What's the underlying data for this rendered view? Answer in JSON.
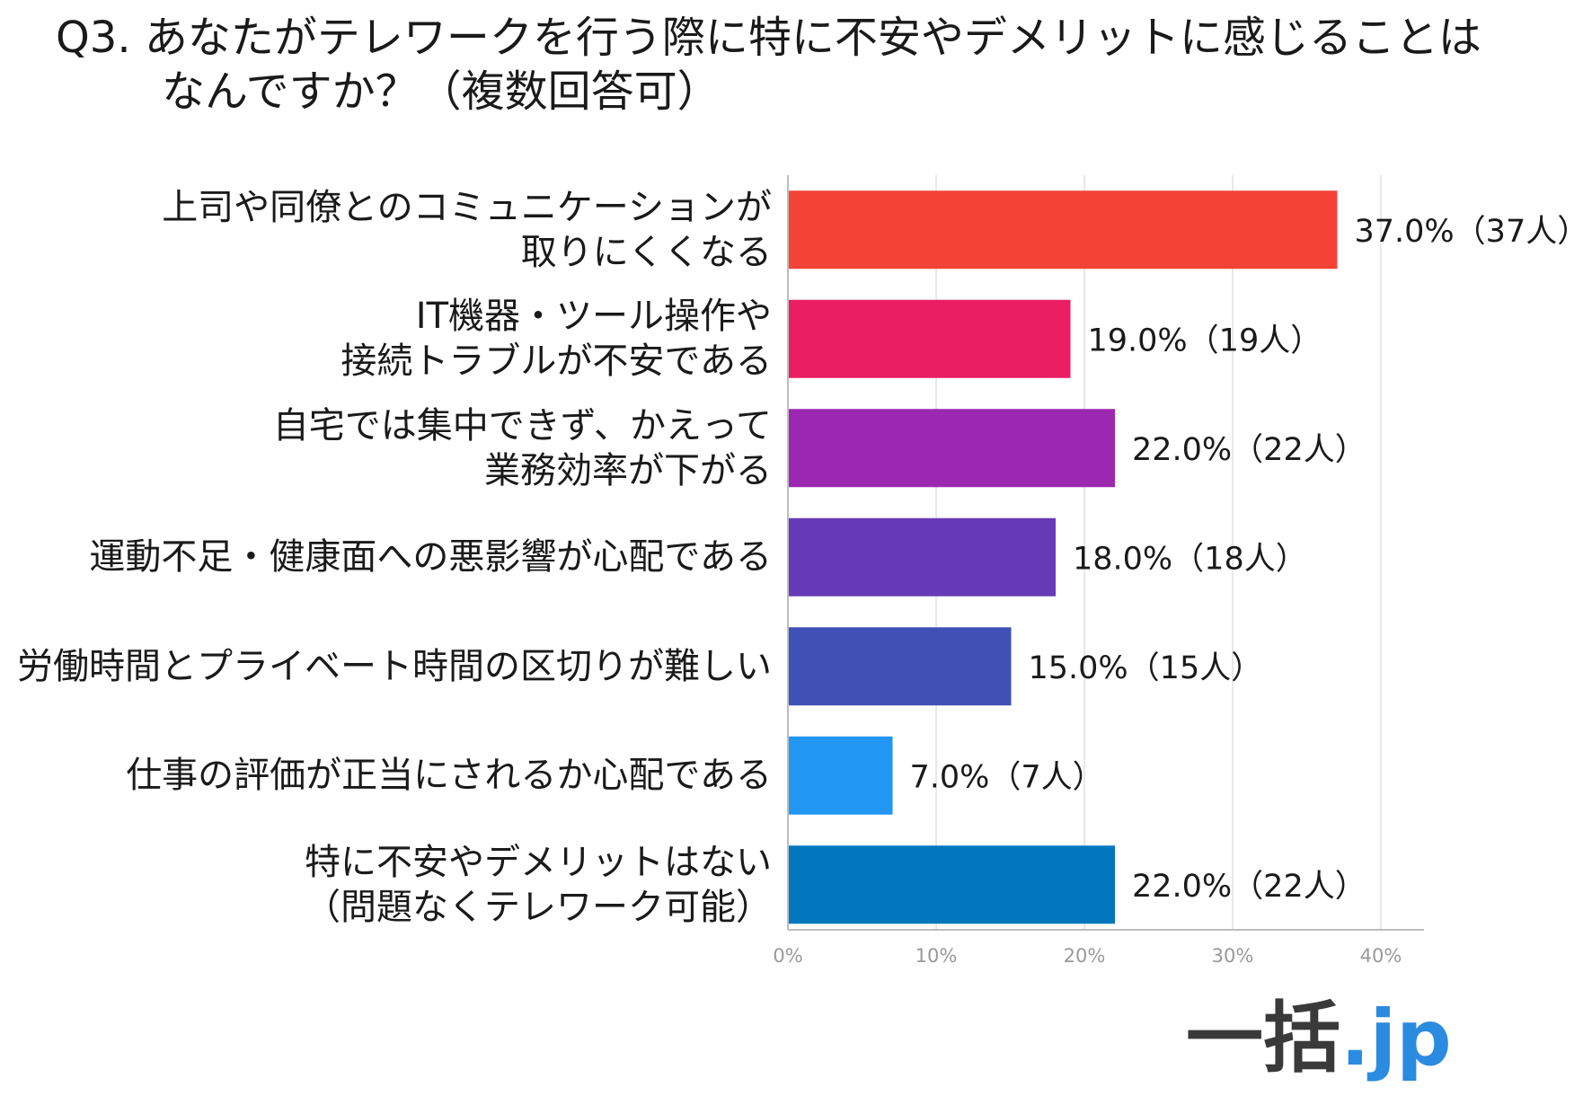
{
  "title": {
    "line1": "Q3. あなたがテレワークを行う際に特に不安やデメリットに感じることは",
    "line2": "なんですか？（複数回答可）"
  },
  "chart_data": {
    "type": "bar",
    "orientation": "horizontal",
    "categories": [
      [
        "上司や同僚とのコミュニケーションが",
        "取りにくくなる"
      ],
      [
        "IT機器・ツール操作や",
        "接続トラブルが不安である"
      ],
      [
        "自宅では集中できず、かえって",
        "業務効率が下がる"
      ],
      [
        "運動不足・健康面への悪影響が心配である"
      ],
      [
        "労働時間とプライベート時間の区切りが難しい"
      ],
      [
        "仕事の評価が正当にされるか心配である"
      ],
      [
        "特に不安やデメリットはない",
        "（問題なくテレワーク可能）"
      ]
    ],
    "values": [
      37.0,
      19.0,
      22.0,
      18.0,
      15.0,
      7.0,
      22.0
    ],
    "value_labels": [
      "37.0%（37人）",
      "19.0%（19人）",
      "22.0%（22人）",
      "18.0%（18人）",
      "15.0%（15人）",
      "7.0%（7人）",
      "22.0%（22人）"
    ],
    "colors": [
      "#f44336",
      "#e91e63",
      "#9c27b0",
      "#673ab7",
      "#3f51b5",
      "#2196f3",
      "#0277bd"
    ],
    "xticks": [
      "0%",
      "10%",
      "20%",
      "30%",
      "40%"
    ],
    "xlim": [
      0,
      43
    ],
    "grid": true,
    "legend": "none"
  },
  "logo": {
    "kanji": "一括",
    "suffix": ".jp"
  }
}
